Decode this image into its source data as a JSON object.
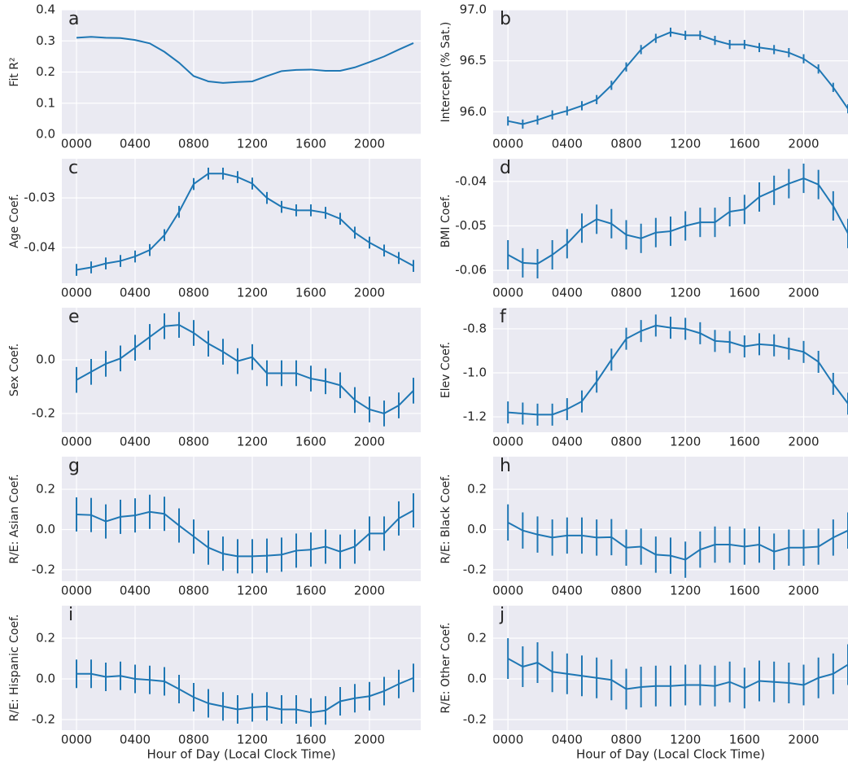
{
  "chart_data": [
    {
      "type": "line",
      "panel_label": "a",
      "ylabel": "Fit R²",
      "color": "#1f77b4",
      "x": [
        0,
        100,
        200,
        300,
        400,
        500,
        600,
        700,
        800,
        900,
        1000,
        1100,
        1200,
        1300,
        1400,
        1500,
        1600,
        1700,
        1800,
        1900,
        2000,
        2100,
        2200,
        2300
      ],
      "values": [
        0.31,
        0.313,
        0.31,
        0.309,
        0.303,
        0.292,
        0.265,
        0.23,
        0.187,
        0.17,
        0.165,
        0.168,
        0.17,
        0.187,
        0.203,
        0.207,
        0.208,
        0.204,
        0.204,
        0.215,
        0.232,
        0.25,
        0.272,
        0.293
      ],
      "xlim": [
        -100,
        2350
      ],
      "xticks": [
        {
          "value": 0,
          "label": "0000"
        },
        {
          "value": 400,
          "label": "0400"
        },
        {
          "value": 800,
          "label": "0800"
        },
        {
          "value": 1200,
          "label": "1200"
        },
        {
          "value": 1600,
          "label": "1600"
        },
        {
          "value": 2000,
          "label": "2000"
        }
      ],
      "ylim": [
        0,
        0.4
      ],
      "yticks": [
        {
          "value": 0,
          "label": "0.0"
        },
        0.1,
        0.2,
        0.3,
        0.4
      ],
      "grid": true
    },
    {
      "type": "line",
      "panel_label": "b",
      "ylabel": "Intercept (% Sat.)",
      "color": "#1f77b4",
      "x": [
        0,
        100,
        200,
        300,
        400,
        500,
        600,
        700,
        800,
        900,
        1000,
        1100,
        1200,
        1300,
        1400,
        1500,
        1600,
        1700,
        1800,
        1900,
        2000,
        2100,
        2200,
        2300
      ],
      "values": [
        95.91,
        95.88,
        95.92,
        95.97,
        96.01,
        96.06,
        96.12,
        96.26,
        96.44,
        96.61,
        96.72,
        96.78,
        96.75,
        96.75,
        96.7,
        96.66,
        96.66,
        96.63,
        96.61,
        96.58,
        96.52,
        96.42,
        96.24,
        96.03
      ],
      "errors": [
        0.045,
        0.045,
        0.045,
        0.045,
        0.045,
        0.045,
        0.045,
        0.045,
        0.045,
        0.045,
        0.045,
        0.045,
        0.045,
        0.045,
        0.045,
        0.045,
        0.045,
        0.045,
        0.045,
        0.045,
        0.045,
        0.045,
        0.045,
        0.045
      ],
      "xlim": [
        -100,
        2300
      ],
      "xticks": [
        {
          "value": 0,
          "label": "0000"
        },
        {
          "value": 400,
          "label": "0400"
        },
        {
          "value": 800,
          "label": "0800"
        },
        {
          "value": 1200,
          "label": "1200"
        },
        {
          "value": 1600,
          "label": "1600"
        },
        {
          "value": 2000,
          "label": "2000"
        }
      ],
      "ylim": [
        95.78,
        97.0
      ],
      "yticks": [
        {
          "value": 96,
          "label": "96.0"
        },
        96.5,
        {
          "value": 97,
          "label": "97.0"
        }
      ],
      "grid": true
    },
    {
      "type": "line",
      "panel_label": "c",
      "ylabel": "Age Coef.",
      "color": "#1f77b4",
      "x": [
        0,
        100,
        200,
        300,
        400,
        500,
        600,
        700,
        800,
        900,
        1000,
        1100,
        1200,
        1300,
        1400,
        1500,
        1600,
        1700,
        1800,
        1900,
        2000,
        2100,
        2200,
        2300
      ],
      "values": [
        -0.0445,
        -0.044,
        -0.0432,
        -0.0427,
        -0.0418,
        -0.0405,
        -0.0375,
        -0.0328,
        -0.0272,
        -0.0251,
        -0.0251,
        -0.0258,
        -0.0271,
        -0.03,
        -0.0318,
        -0.0325,
        -0.0325,
        -0.033,
        -0.0342,
        -0.037,
        -0.039,
        -0.0406,
        -0.0421,
        -0.0437
      ],
      "errors": [
        0.0012,
        0.0012,
        0.0012,
        0.0012,
        0.0012,
        0.0012,
        0.0012,
        0.0012,
        0.0012,
        0.0012,
        0.0012,
        0.0012,
        0.0012,
        0.0012,
        0.0012,
        0.0012,
        0.0012,
        0.0012,
        0.0012,
        0.0012,
        0.0012,
        0.0012,
        0.0012,
        0.0012
      ],
      "xlim": [
        -100,
        2350
      ],
      "xticks": [
        {
          "value": 0,
          "label": "0000"
        },
        {
          "value": 400,
          "label": "0400"
        },
        {
          "value": 800,
          "label": "0800"
        },
        {
          "value": 1200,
          "label": "1200"
        },
        {
          "value": 1600,
          "label": "1600"
        },
        {
          "value": 2000,
          "label": "2000"
        }
      ],
      "ylim": [
        -0.0472,
        -0.0221
      ],
      "yticks": [
        -0.04,
        -0.03
      ],
      "grid": true
    },
    {
      "type": "line",
      "panel_label": "d",
      "ylabel": "BMI Coef.",
      "color": "#1f77b4",
      "x": [
        0,
        100,
        200,
        300,
        400,
        500,
        600,
        700,
        800,
        900,
        1000,
        1100,
        1200,
        1300,
        1400,
        1500,
        1600,
        1700,
        1800,
        1900,
        2000,
        2100,
        2200,
        2300
      ],
      "values": [
        -0.0565,
        -0.0583,
        -0.0585,
        -0.0565,
        -0.054,
        -0.0505,
        -0.0485,
        -0.0495,
        -0.052,
        -0.0528,
        -0.0515,
        -0.0512,
        -0.05,
        -0.0492,
        -0.0492,
        -0.0468,
        -0.0463,
        -0.0435,
        -0.042,
        -0.0405,
        -0.0393,
        -0.0407,
        -0.0455,
        -0.0517
      ],
      "errors": [
        0.0033,
        0.0033,
        0.0033,
        0.0033,
        0.0033,
        0.0033,
        0.0033,
        0.0033,
        0.0033,
        0.0033,
        0.0033,
        0.0033,
        0.0033,
        0.0033,
        0.0033,
        0.0033,
        0.0033,
        0.0033,
        0.0033,
        0.0033,
        0.0033,
        0.0033,
        0.0033,
        0.0033
      ],
      "xlim": [
        -100,
        2300
      ],
      "xticks": [
        {
          "value": 0,
          "label": "0000"
        },
        {
          "value": 400,
          "label": "0400"
        },
        {
          "value": 800,
          "label": "0800"
        },
        {
          "value": 1200,
          "label": "1200"
        },
        {
          "value": 1600,
          "label": "1600"
        },
        {
          "value": 2000,
          "label": "2000"
        }
      ],
      "ylim": [
        -0.0629,
        -0.0349
      ],
      "yticks": [
        -0.06,
        -0.05,
        -0.04
      ],
      "grid": true
    },
    {
      "type": "line",
      "panel_label": "e",
      "ylabel": "Sex Coef.",
      "color": "#1f77b4",
      "x": [
        0,
        100,
        200,
        300,
        400,
        500,
        600,
        700,
        800,
        900,
        1000,
        1100,
        1200,
        1300,
        1400,
        1500,
        1600,
        1700,
        1800,
        1900,
        2000,
        2100,
        2200,
        2300
      ],
      "values": [
        -0.075,
        -0.045,
        -0.015,
        0.005,
        0.045,
        0.085,
        0.125,
        0.13,
        0.1,
        0.06,
        0.03,
        -0.005,
        0.01,
        -0.05,
        -0.05,
        -0.05,
        -0.07,
        -0.08,
        -0.095,
        -0.15,
        -0.185,
        -0.2,
        -0.17,
        -0.115
      ],
      "errors": [
        0.048,
        0.048,
        0.048,
        0.048,
        0.048,
        0.048,
        0.048,
        0.048,
        0.048,
        0.048,
        0.048,
        0.048,
        0.048,
        0.048,
        0.048,
        0.048,
        0.048,
        0.048,
        0.048,
        0.048,
        0.048,
        0.048,
        0.048,
        0.048
      ],
      "xlim": [
        -100,
        2350
      ],
      "xticks": [
        {
          "value": 0,
          "label": "0000"
        },
        {
          "value": 400,
          "label": "0400"
        },
        {
          "value": 800,
          "label": "0800"
        },
        {
          "value": 1200,
          "label": "1200"
        },
        {
          "value": 1600,
          "label": "1600"
        },
        {
          "value": 2000,
          "label": "2000"
        }
      ],
      "ylim": [
        -0.27,
        0.194
      ],
      "yticks": [
        -0.2,
        {
          "value": 0,
          "label": "0.0"
        }
      ],
      "grid": true
    },
    {
      "type": "line",
      "panel_label": "f",
      "ylabel": "Elev Coef.",
      "color": "#1f77b4",
      "x": [
        0,
        100,
        200,
        300,
        400,
        500,
        600,
        700,
        800,
        900,
        1000,
        1100,
        1200,
        1300,
        1400,
        1500,
        1600,
        1700,
        1800,
        1900,
        2000,
        2100,
        2200,
        2300
      ],
      "values": [
        -1.18,
        -1.185,
        -1.19,
        -1.19,
        -1.165,
        -1.13,
        -1.04,
        -0.94,
        -0.845,
        -0.81,
        -0.785,
        -0.795,
        -0.8,
        -0.82,
        -0.855,
        -0.86,
        -0.88,
        -0.87,
        -0.875,
        -0.89,
        -0.905,
        -0.95,
        -1.05,
        -1.14
      ],
      "errors": [
        0.05,
        0.05,
        0.05,
        0.05,
        0.05,
        0.05,
        0.05,
        0.05,
        0.05,
        0.05,
        0.05,
        0.05,
        0.05,
        0.05,
        0.05,
        0.05,
        0.05,
        0.05,
        0.05,
        0.05,
        0.05,
        0.05,
        0.05,
        0.05
      ],
      "xlim": [
        -100,
        2300
      ],
      "xticks": [
        {
          "value": 0,
          "label": "0000"
        },
        {
          "value": 400,
          "label": "0400"
        },
        {
          "value": 800,
          "label": "0800"
        },
        {
          "value": 1200,
          "label": "1200"
        },
        {
          "value": 1600,
          "label": "1600"
        },
        {
          "value": 2000,
          "label": "2000"
        }
      ],
      "ylim": [
        -1.27,
        -0.704
      ],
      "yticks": [
        -1.2,
        {
          "value": -1,
          "label": "-1.0"
        },
        -0.8
      ],
      "grid": true
    },
    {
      "type": "line",
      "panel_label": "g",
      "ylabel": "R/E: Asian Coef.",
      "color": "#1f77b4",
      "x": [
        0,
        100,
        200,
        300,
        400,
        500,
        600,
        700,
        800,
        900,
        1000,
        1100,
        1200,
        1300,
        1400,
        1500,
        1600,
        1700,
        1800,
        1900,
        2000,
        2100,
        2200,
        2300
      ],
      "values": [
        0.075,
        0.072,
        0.04,
        0.063,
        0.07,
        0.088,
        0.078,
        0.02,
        -0.035,
        -0.09,
        -0.12,
        -0.133,
        -0.133,
        -0.13,
        -0.125,
        -0.105,
        -0.1,
        -0.085,
        -0.11,
        -0.085,
        -0.02,
        -0.02,
        0.055,
        0.095
      ],
      "errors": [
        0.085,
        0.085,
        0.085,
        0.085,
        0.085,
        0.085,
        0.085,
        0.085,
        0.085,
        0.085,
        0.085,
        0.085,
        0.085,
        0.085,
        0.085,
        0.085,
        0.085,
        0.085,
        0.085,
        0.085,
        0.085,
        0.085,
        0.085,
        0.085
      ],
      "xlim": [
        -100,
        2350
      ],
      "xticks": [
        {
          "value": 0,
          "label": "0000"
        },
        {
          "value": 400,
          "label": "0400"
        },
        {
          "value": 800,
          "label": "0800"
        },
        {
          "value": 1200,
          "label": "1200"
        },
        {
          "value": 1600,
          "label": "1600"
        },
        {
          "value": 2000,
          "label": "2000"
        }
      ],
      "ylim": [
        -0.257,
        0.362
      ],
      "yticks": [
        -0.2,
        {
          "value": 0,
          "label": "0.0"
        },
        0.2
      ],
      "grid": true
    },
    {
      "type": "line",
      "panel_label": "h",
      "ylabel": "R/E: Black Coef.",
      "color": "#1f77b4",
      "x": [
        0,
        100,
        200,
        300,
        400,
        500,
        600,
        700,
        800,
        900,
        1000,
        1100,
        1200,
        1300,
        1400,
        1500,
        1600,
        1700,
        1800,
        1900,
        2000,
        2100,
        2200,
        2300
      ],
      "values": [
        0.035,
        -0.005,
        -0.025,
        -0.04,
        -0.03,
        -0.03,
        -0.04,
        -0.038,
        -0.09,
        -0.085,
        -0.125,
        -0.13,
        -0.15,
        -0.1,
        -0.075,
        -0.075,
        -0.085,
        -0.075,
        -0.11,
        -0.09,
        -0.09,
        -0.085,
        -0.04,
        -0.005
      ],
      "errors": [
        0.09,
        0.09,
        0.09,
        0.09,
        0.09,
        0.09,
        0.09,
        0.09,
        0.09,
        0.09,
        0.09,
        0.09,
        0.09,
        0.09,
        0.09,
        0.09,
        0.09,
        0.09,
        0.09,
        0.09,
        0.09,
        0.09,
        0.09,
        0.09
      ],
      "xlim": [
        -100,
        2300
      ],
      "xticks": [
        {
          "value": 0,
          "label": "0000"
        },
        {
          "value": 400,
          "label": "0400"
        },
        {
          "value": 800,
          "label": "0800"
        },
        {
          "value": 1200,
          "label": "1200"
        },
        {
          "value": 1600,
          "label": "1600"
        },
        {
          "value": 2000,
          "label": "2000"
        }
      ],
      "ylim": [
        -0.257,
        0.362
      ],
      "yticks": [
        -0.2,
        {
          "value": 0,
          "label": "0.0"
        },
        0.2
      ],
      "grid": true
    },
    {
      "type": "line",
      "panel_label": "i",
      "ylabel": "R/E: Hispanic Coef.",
      "xlabel": "Hour of Day (Local Clock Time)",
      "color": "#1f77b4",
      "x": [
        0,
        100,
        200,
        300,
        400,
        500,
        600,
        700,
        800,
        900,
        1000,
        1100,
        1200,
        1300,
        1400,
        1500,
        1600,
        1700,
        1800,
        1900,
        2000,
        2100,
        2200,
        2300
      ],
      "values": [
        0.025,
        0.025,
        0.01,
        0.015,
        0.0,
        -0.005,
        -0.012,
        -0.05,
        -0.09,
        -0.12,
        -0.135,
        -0.15,
        -0.14,
        -0.135,
        -0.15,
        -0.15,
        -0.165,
        -0.155,
        -0.11,
        -0.095,
        -0.085,
        -0.06,
        -0.025,
        0.005
      ],
      "errors": [
        0.07,
        0.07,
        0.07,
        0.07,
        0.07,
        0.07,
        0.07,
        0.07,
        0.07,
        0.07,
        0.07,
        0.07,
        0.07,
        0.07,
        0.07,
        0.07,
        0.07,
        0.07,
        0.07,
        0.07,
        0.07,
        0.07,
        0.07,
        0.07
      ],
      "xlim": [
        -100,
        2350
      ],
      "xticks": [
        {
          "value": 0,
          "label": "0000"
        },
        {
          "value": 400,
          "label": "0400"
        },
        {
          "value": 800,
          "label": "0800"
        },
        {
          "value": 1200,
          "label": "1200"
        },
        {
          "value": 1600,
          "label": "1600"
        },
        {
          "value": 2000,
          "label": "2000"
        }
      ],
      "ylim": [
        -0.252,
        0.36
      ],
      "yticks": [
        -0.2,
        {
          "value": 0,
          "label": "0.0"
        },
        0.2
      ],
      "grid": true
    },
    {
      "type": "line",
      "panel_label": "j",
      "ylabel": "R/E: Other Coef.",
      "xlabel": "Hour of Day (Local Clock Time)",
      "color": "#1f77b4",
      "x": [
        0,
        100,
        200,
        300,
        400,
        500,
        600,
        700,
        800,
        900,
        1000,
        1100,
        1200,
        1300,
        1400,
        1500,
        1600,
        1700,
        1800,
        1900,
        2000,
        2100,
        2200,
        2300
      ],
      "values": [
        0.1,
        0.06,
        0.08,
        0.035,
        0.025,
        0.015,
        0.005,
        -0.005,
        -0.05,
        -0.04,
        -0.035,
        -0.035,
        -0.03,
        -0.03,
        -0.035,
        -0.015,
        -0.045,
        -0.01,
        -0.015,
        -0.02,
        -0.03,
        0.005,
        0.025,
        0.07
      ],
      "errors": [
        0.1,
        0.1,
        0.1,
        0.1,
        0.1,
        0.1,
        0.1,
        0.1,
        0.1,
        0.1,
        0.1,
        0.1,
        0.1,
        0.1,
        0.1,
        0.1,
        0.1,
        0.1,
        0.1,
        0.1,
        0.1,
        0.1,
        0.1,
        0.1
      ],
      "xlim": [
        -100,
        2300
      ],
      "xticks": [
        {
          "value": 0,
          "label": "0000"
        },
        {
          "value": 400,
          "label": "0400"
        },
        {
          "value": 800,
          "label": "0800"
        },
        {
          "value": 1200,
          "label": "1200"
        },
        {
          "value": 1600,
          "label": "1600"
        },
        {
          "value": 2000,
          "label": "2000"
        }
      ],
      "ylim": [
        -0.252,
        0.36
      ],
      "yticks": [
        -0.2,
        {
          "value": 0,
          "label": "0.0"
        },
        0.2
      ],
      "grid": true
    }
  ]
}
